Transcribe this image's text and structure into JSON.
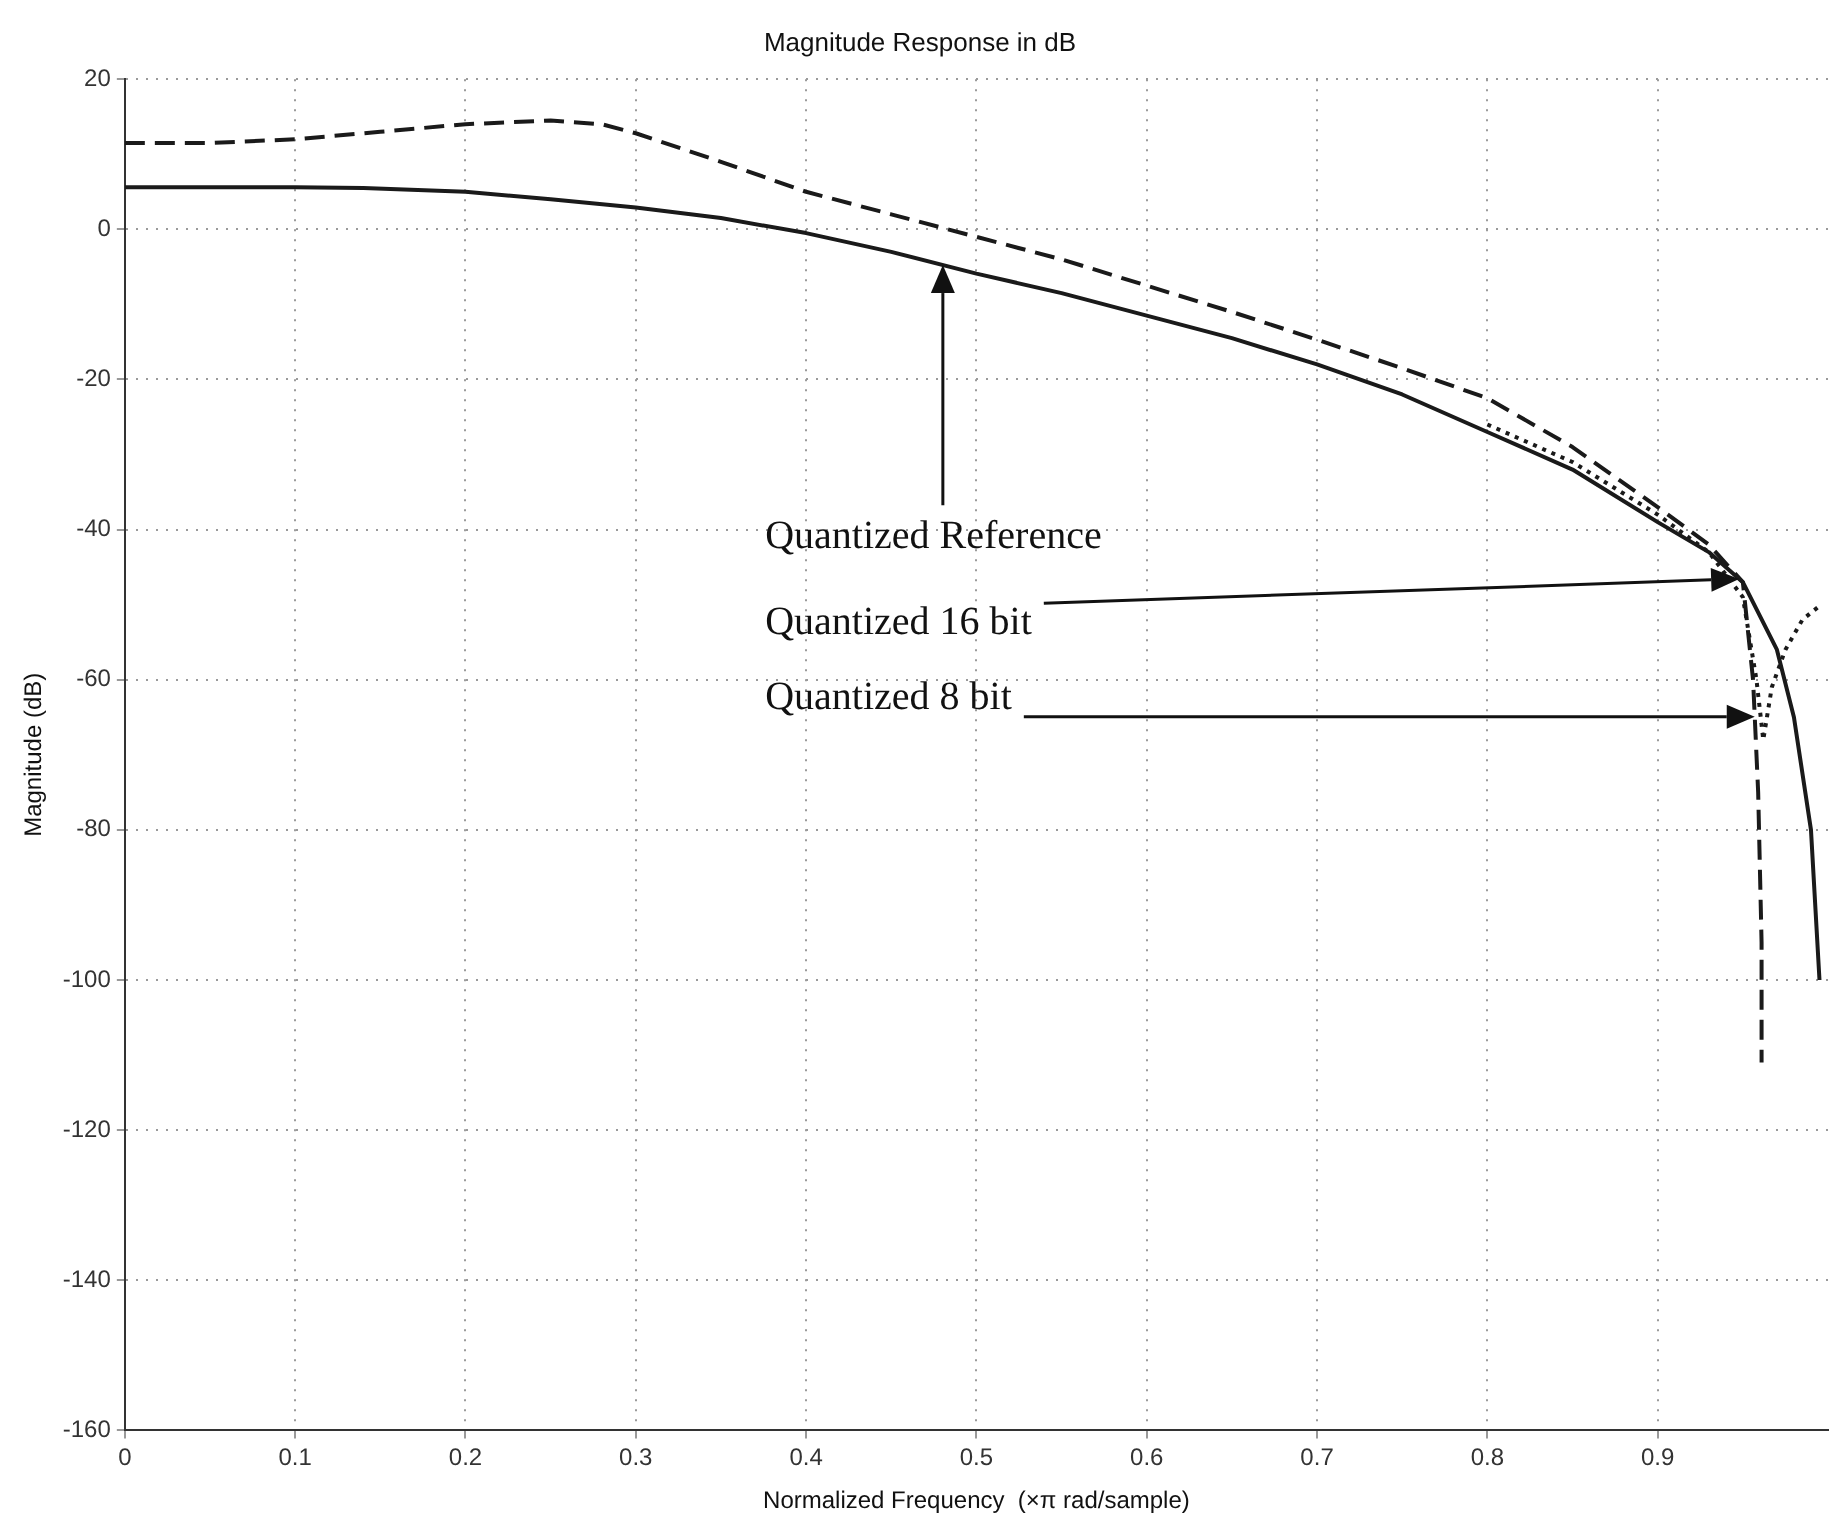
{
  "chart_data": {
    "type": "line",
    "title": "Magnitude Response in dB",
    "xlabel": "Normalized Frequency  (×π rad/sample)",
    "ylabel": "Magnitude (dB)",
    "xlim": [
      0,
      1
    ],
    "xticks": [
      0,
      0.1,
      0.2,
      0.3,
      0.4,
      0.5,
      0.6,
      0.7,
      0.8,
      0.9
    ],
    "ylim": [
      -160,
      20
    ],
    "yticks": [
      -160,
      -140,
      -120,
      -100,
      -80,
      -60,
      -40,
      -20,
      0,
      20
    ],
    "grid": true,
    "legend": false,
    "marker": "none",
    "series": [
      {
        "color": "#1a1a1a",
        "line_style": "solid",
        "x": [
          0,
          0.1,
          0.14,
          0.2,
          0.25,
          0.3,
          0.35,
          0.4,
          0.45,
          0.5,
          0.55,
          0.6,
          0.65,
          0.7,
          0.75,
          0.8,
          0.85,
          0.9,
          0.93,
          0.95,
          0.97,
          0.98,
          0.99,
          0.995
        ],
        "values": [
          5.6,
          5.6,
          5.5,
          5,
          4,
          2.9,
          1.5,
          -0.5,
          -3,
          -5.9,
          -8.5,
          -11.5,
          -14.5,
          -18,
          -22,
          -27,
          -32,
          -39,
          -43,
          -47,
          -56,
          -65,
          -80,
          -100
        ]
      },
      {
        "color": "#1a1a1a",
        "line_style": "dotted",
        "x": [
          0.8,
          0.85,
          0.9,
          0.93,
          0.95,
          0.958,
          0.962,
          0.967,
          0.975,
          0.985,
          0.996
        ],
        "values": [
          -26,
          -31,
          -38,
          -43,
          -49,
          -60,
          -68,
          -61,
          -56,
          -52,
          -50
        ]
      },
      {
        "color": "#1a1a1a",
        "line_style": "dashed",
        "x": [
          0,
          0.05,
          0.1,
          0.15,
          0.2,
          0.25,
          0.28,
          0.3,
          0.35,
          0.4,
          0.45,
          0.5,
          0.55,
          0.6,
          0.65,
          0.7,
          0.75,
          0.8,
          0.85,
          0.9,
          0.93,
          0.95,
          0.956,
          0.959,
          0.961,
          0.961
        ],
        "values": [
          11.5,
          11.5,
          12,
          13,
          14,
          14.5,
          14,
          12.8,
          9,
          5,
          2,
          -1,
          -4,
          -7.5,
          -11,
          -14.7,
          -18.5,
          -22.5,
          -29,
          -37,
          -42,
          -47,
          -60,
          -75,
          -95,
          -111
        ]
      }
    ],
    "annotations": [
      "Quantized Reference",
      "Quantized 16 bit",
      "Quantized 8 bit"
    ]
  }
}
